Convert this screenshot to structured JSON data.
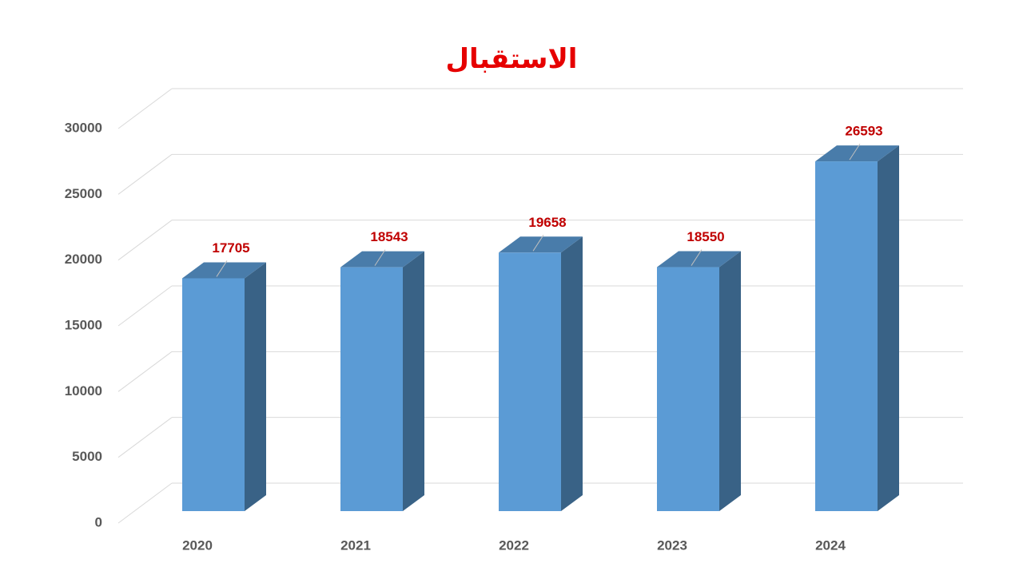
{
  "chart_data": {
    "type": "bar3d",
    "title": "الاستقبال",
    "categories": [
      "2020",
      "2021",
      "2022",
      "2023",
      "2024"
    ],
    "values": [
      17705,
      18543,
      19658,
      18550,
      26593
    ],
    "color": "#5b9bd5",
    "ylim": [
      0,
      30000
    ],
    "yticks": [
      0,
      5000,
      10000,
      15000,
      20000,
      25000,
      30000
    ],
    "grid": true
  }
}
